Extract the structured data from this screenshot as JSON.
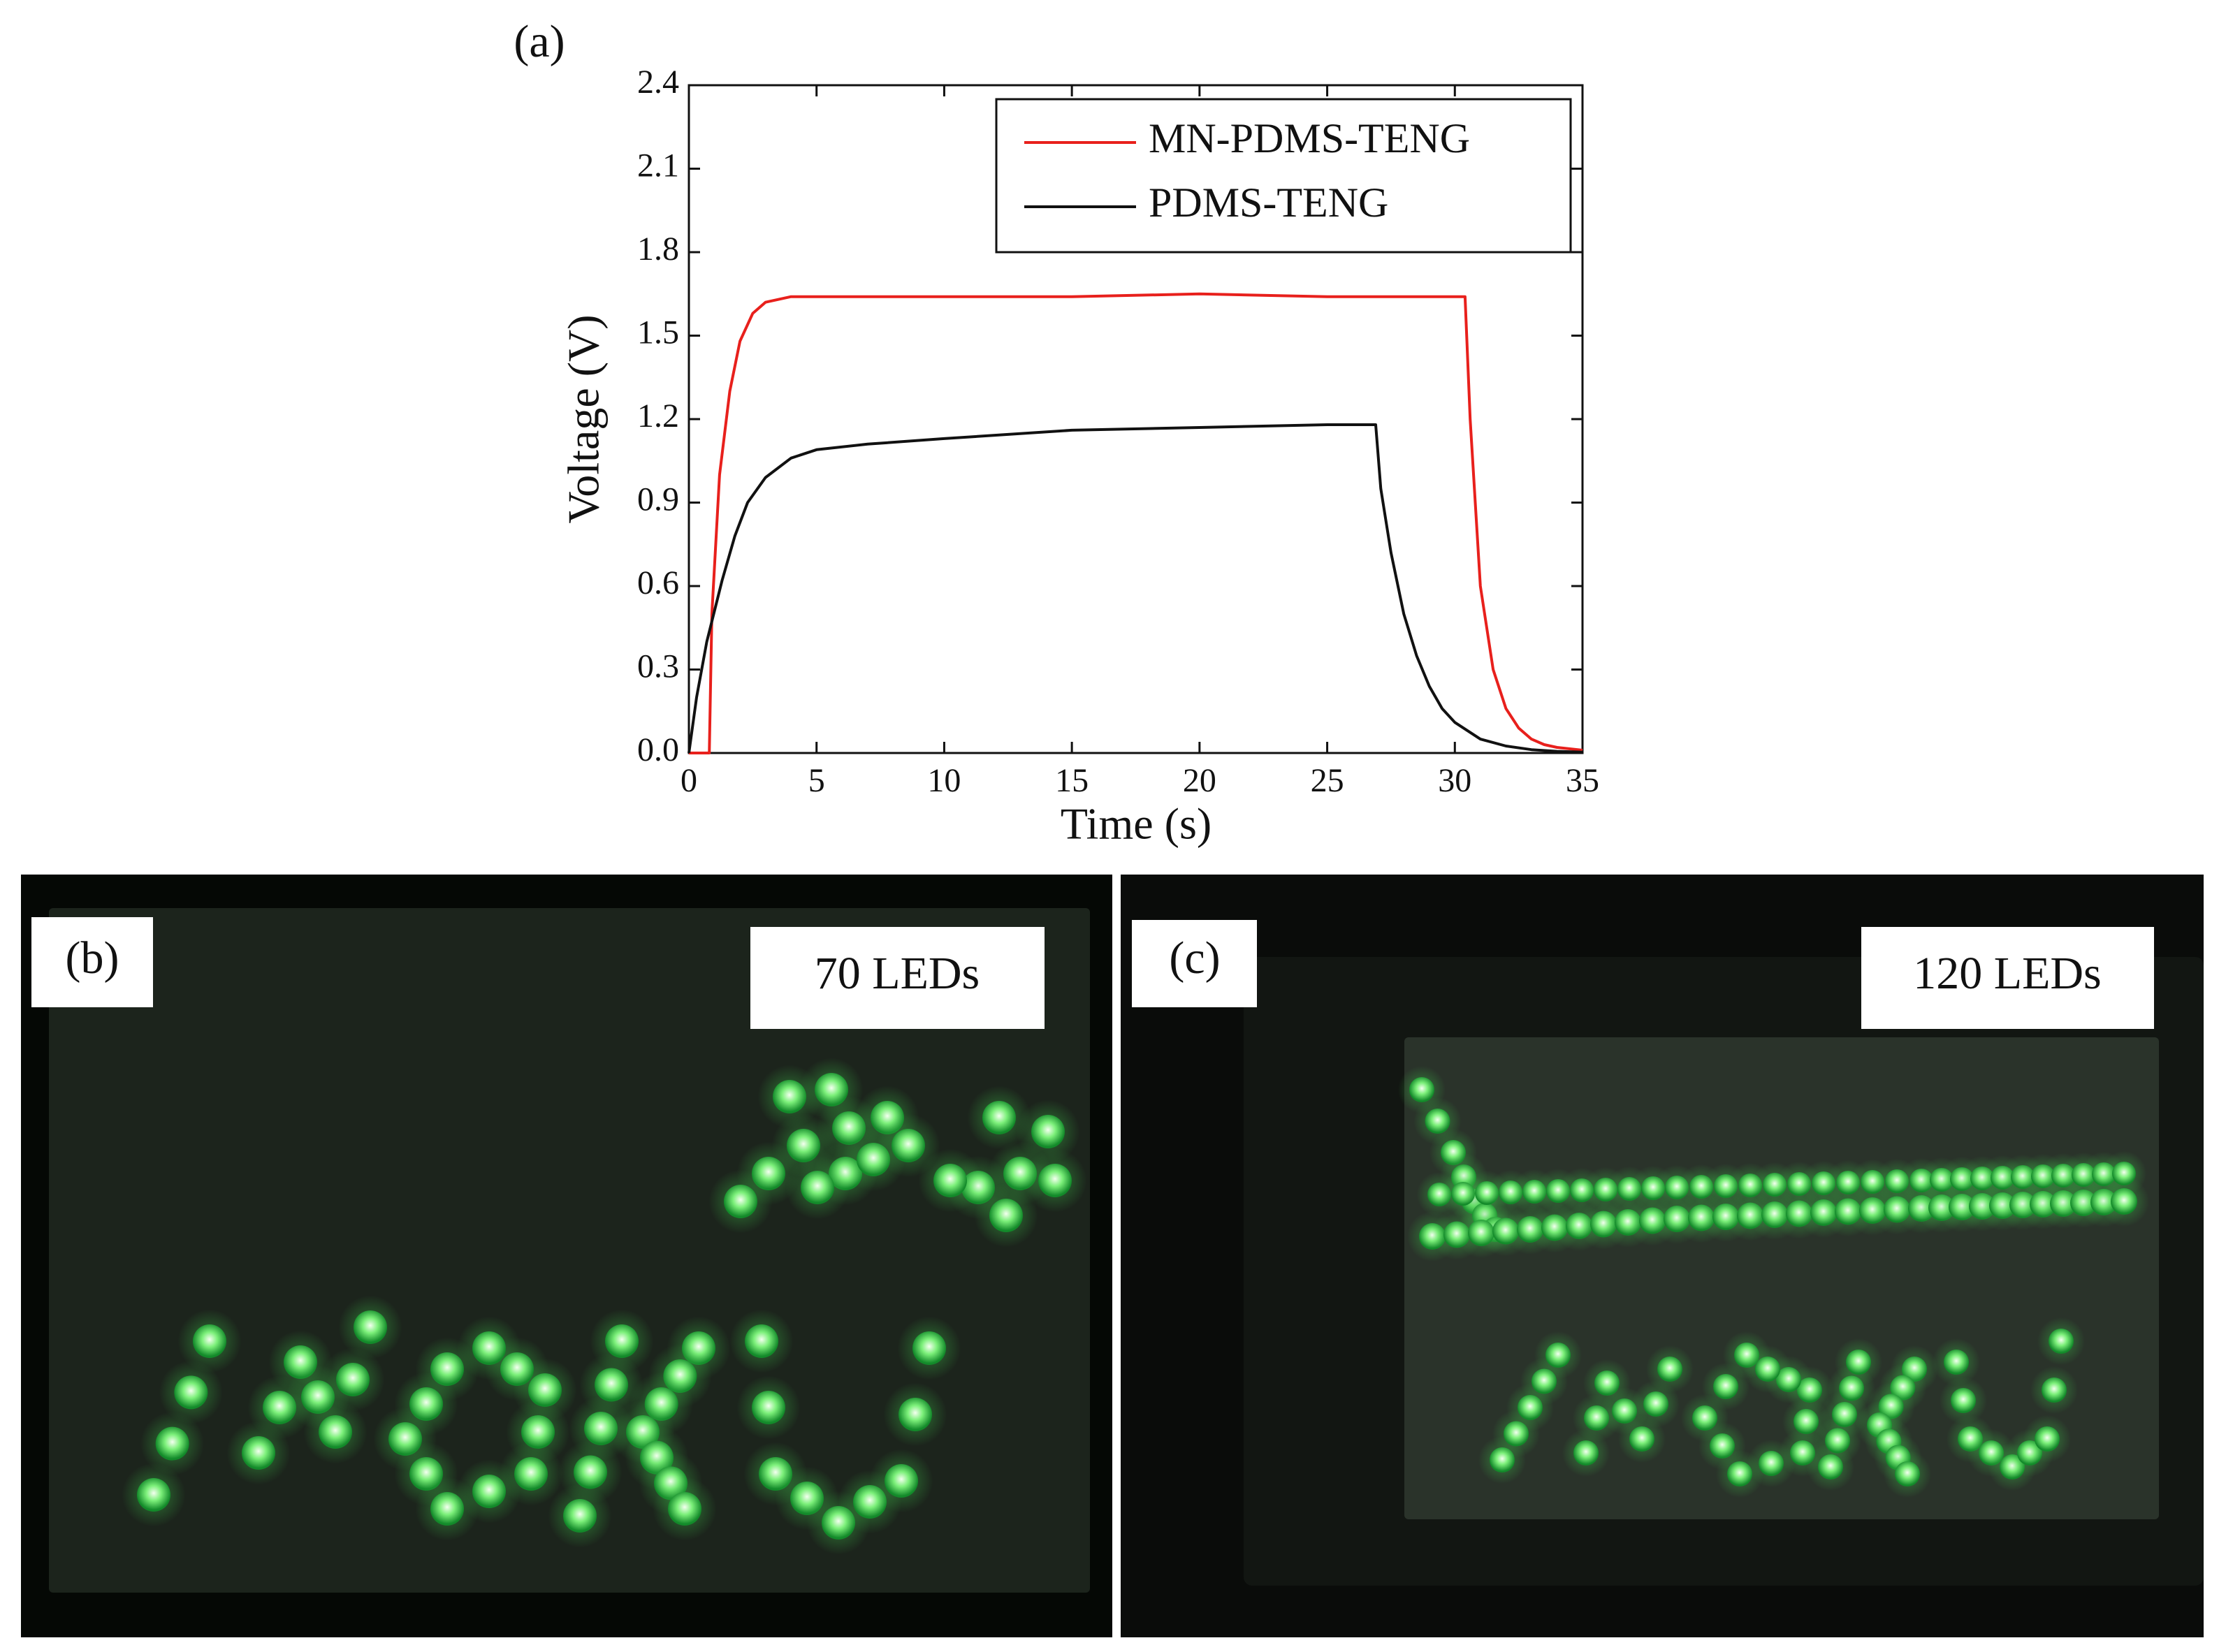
{
  "chart_data": {
    "type": "line",
    "panel_label": "(a)",
    "x_label": "Time (s)",
    "y_label": "Voltage (V)",
    "xlim": [
      0,
      35
    ],
    "ylim": [
      0,
      2.4
    ],
    "xticks": [
      0,
      5,
      10,
      15,
      20,
      25,
      30,
      35
    ],
    "yticks": [
      {
        "value": 0,
        "label": "0.0"
      },
      0.3,
      0.6,
      0.9,
      1.2,
      1.5,
      1.8,
      2.1,
      2.4
    ],
    "legend": "upper right",
    "series": [
      {
        "name": "MN-PDMS-TENG",
        "color": "#e8201c",
        "x": [
          0,
          0.8,
          0.9,
          1.2,
          1.6,
          2.0,
          2.5,
          3.0,
          4.0,
          6.0,
          10.0,
          15.0,
          20.0,
          25.0,
          30.4,
          30.6,
          31.0,
          31.5,
          32.0,
          32.5,
          33.0,
          33.5,
          34.0,
          35.0
        ],
        "values": [
          0,
          0,
          0.5,
          1.0,
          1.3,
          1.48,
          1.58,
          1.62,
          1.64,
          1.64,
          1.64,
          1.64,
          1.65,
          1.64,
          1.64,
          1.2,
          0.6,
          0.3,
          0.16,
          0.09,
          0.05,
          0.03,
          0.02,
          0.01
        ]
      },
      {
        "name": "PDMS-TENG",
        "color": "#111111",
        "x": [
          0,
          0.3,
          0.7,
          1.3,
          1.8,
          2.3,
          3.0,
          4.0,
          5.0,
          7.0,
          10.0,
          15.0,
          20.0,
          25.0,
          26.9,
          27.1,
          27.5,
          28.0,
          28.5,
          29.0,
          29.5,
          30.0,
          31.0,
          32.0,
          33.0,
          34.0,
          35.0
        ],
        "values": [
          0,
          0.2,
          0.4,
          0.62,
          0.78,
          0.9,
          0.99,
          1.06,
          1.09,
          1.11,
          1.13,
          1.16,
          1.17,
          1.18,
          1.18,
          0.95,
          0.72,
          0.5,
          0.35,
          0.24,
          0.16,
          0.11,
          0.05,
          0.025,
          0.012,
          0.006,
          0.003
        ]
      }
    ]
  },
  "photos": [
    {
      "label": "(b)",
      "caption": "70 LEDs"
    },
    {
      "label": "(c)",
      "caption": "120 LEDs"
    }
  ]
}
